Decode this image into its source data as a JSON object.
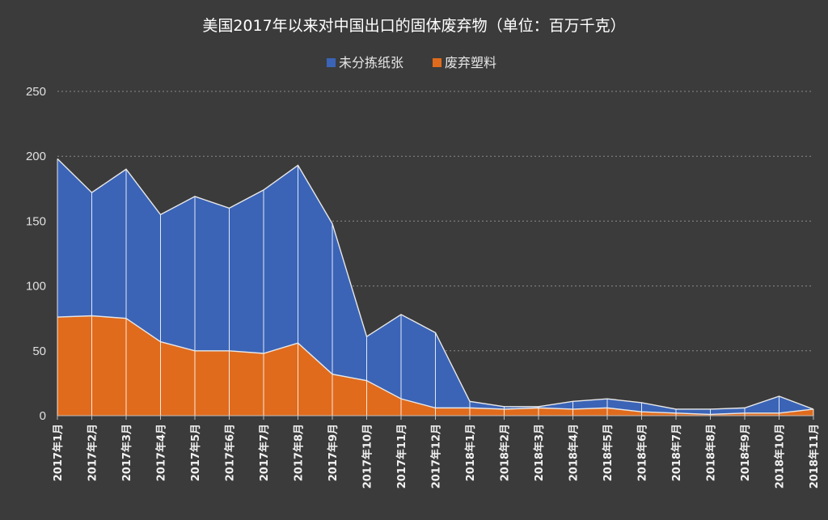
{
  "chart_data": {
    "type": "area",
    "title": "美国2017年以来对中国出口的固体废弃物（单位：百万千克）",
    "categories": [
      "2017年1月",
      "2017年2月",
      "2017年3月",
      "2017年4月",
      "2017年5月",
      "2017年6月",
      "2017年7月",
      "2017年8月",
      "2017年9月",
      "2017年10月",
      "2017年11月",
      "2017年12月",
      "2018年1月",
      "2018年2月",
      "2018年3月",
      "2018年4月",
      "2018年5月",
      "2018年6月",
      "2018年7月",
      "2018年8月",
      "2018年9月",
      "2018年10月",
      "2018年11月"
    ],
    "series": [
      {
        "name": "未分拣纸张",
        "color": "#3b64b7",
        "values": [
          198,
          172,
          190,
          155,
          169,
          160,
          174,
          193,
          148,
          61,
          78,
          64,
          11,
          7,
          7,
          11,
          13,
          10,
          5,
          5,
          6,
          15,
          5
        ]
      },
      {
        "name": "废弃塑料",
        "color": "#e06b1c",
        "values": [
          76,
          77,
          75,
          57,
          50,
          50,
          48,
          56,
          32,
          27,
          13,
          6,
          6,
          5,
          6,
          5,
          6,
          3,
          2,
          1,
          2,
          2,
          5
        ]
      }
    ],
    "ylim": [
      0,
      250
    ],
    "yticks": [
      0,
      50,
      100,
      150,
      200,
      250
    ],
    "grid": true,
    "legend_position": "top"
  }
}
